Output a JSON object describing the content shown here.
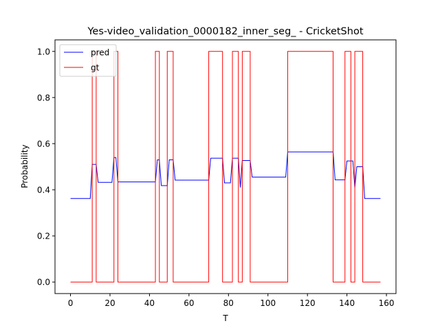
{
  "chart_data": {
    "type": "line",
    "title": "Yes-video_validation_0000182_inner_seg_ - CricketShot",
    "xlabel": "T",
    "ylabel": "Probability",
    "xlim": [
      -7.85,
      164.85
    ],
    "ylim": [
      -0.05,
      1.05
    ],
    "xticks": [
      0,
      20,
      40,
      60,
      80,
      100,
      120,
      140,
      160
    ],
    "yticks": [
      0.0,
      0.2,
      0.4,
      0.6,
      0.8,
      1.0
    ],
    "xtick_labels": [
      "0",
      "20",
      "40",
      "60",
      "80",
      "100",
      "120",
      "140",
      "160"
    ],
    "ytick_labels": [
      "0.0",
      "0.2",
      "0.4",
      "0.6",
      "0.8",
      "1.0"
    ],
    "grid": false,
    "legend": "top-left",
    "series": [
      {
        "name": "pred",
        "color": "#0000ff",
        "x": [
          0,
          10,
          11,
          12,
          13,
          14,
          21,
          22,
          23,
          24,
          43,
          44,
          45,
          46,
          48,
          49,
          50,
          52,
          53,
          70,
          71,
          76,
          77,
          78,
          81,
          82,
          83,
          85,
          86,
          87,
          88,
          91,
          92,
          109,
          110,
          132,
          133,
          134,
          139,
          140,
          142,
          143,
          144,
          145,
          148,
          149,
          157
        ],
        "y": [
          0.362,
          0.362,
          0.51,
          0.51,
          0.51,
          0.432,
          0.432,
          0.54,
          0.54,
          0.434,
          0.434,
          0.53,
          0.53,
          0.418,
          0.418,
          0.418,
          0.53,
          0.53,
          0.442,
          0.442,
          0.537,
          0.537,
          0.537,
          0.43,
          0.43,
          0.537,
          0.537,
          0.537,
          0.41,
          0.527,
          0.527,
          0.527,
          0.455,
          0.455,
          0.564,
          0.564,
          0.564,
          0.443,
          0.443,
          0.525,
          0.525,
          0.525,
          0.41,
          0.5,
          0.5,
          0.362,
          0.362
        ]
      },
      {
        "name": "gt",
        "color": "#ff0000",
        "x": [
          0,
          11,
          11,
          13,
          13,
          22,
          22,
          24,
          24,
          43,
          43,
          45,
          45,
          49,
          49,
          52,
          52,
          70,
          70,
          77,
          77,
          82,
          82,
          85,
          85,
          87,
          87,
          91,
          91,
          110,
          110,
          133,
          133,
          139,
          139,
          142,
          142,
          144,
          144,
          148,
          148,
          157
        ],
        "y": [
          0,
          0,
          1,
          1,
          0,
          0,
          1,
          1,
          0,
          0,
          1,
          1,
          0,
          0,
          1,
          1,
          0,
          0,
          1,
          1,
          0,
          0,
          1,
          1,
          0,
          0,
          1,
          1,
          0,
          0,
          1,
          1,
          0,
          0,
          1,
          1,
          0,
          0,
          1,
          1,
          0,
          0
        ]
      }
    ]
  }
}
